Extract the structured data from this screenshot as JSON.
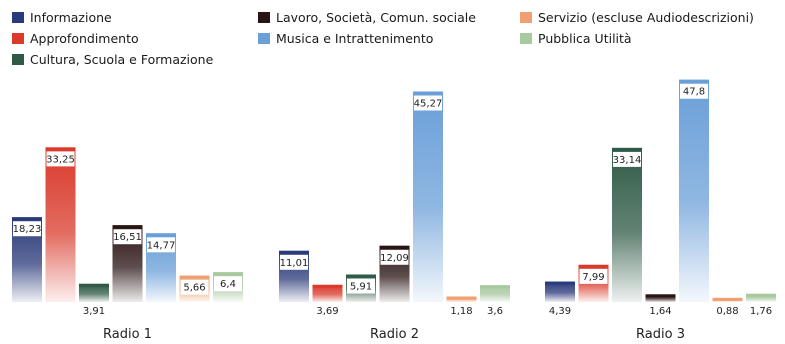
{
  "chart_data": {
    "type": "bar",
    "title": "",
    "xlabel": "",
    "ylabel": "",
    "ylim": [
      0,
      50
    ],
    "grid": false,
    "legend_position": "top",
    "categories": [
      "Radio 1",
      "Radio 2",
      "Radio 3"
    ],
    "series": [
      {
        "name": "Informazione",
        "color": "#2b3a7a",
        "values": [
          18.23,
          11.01,
          4.39
        ],
        "labels": [
          "18,23",
          "11,01",
          "4,39"
        ]
      },
      {
        "name": "Approfondimento",
        "color": "#d93a2b",
        "values": [
          33.25,
          3.69,
          7.99
        ],
        "labels": [
          "33,25",
          "3,69",
          "7,99"
        ]
      },
      {
        "name": "Cultura, Scuola e Formazione",
        "color": "#2f5a46",
        "values": [
          3.91,
          5.91,
          33.14
        ],
        "labels": [
          "3,91",
          "5,91",
          "33,14"
        ]
      },
      {
        "name": "Lavoro, Società, Comun. sociale",
        "color": "#2a1414",
        "values": [
          16.51,
          12.09,
          1.64
        ],
        "labels": [
          "16,51",
          "12,09",
          "1,64"
        ]
      },
      {
        "name": "Musica e Intrattenimento",
        "color": "#6a9fd8",
        "values": [
          14.77,
          45.27,
          47.8
        ],
        "labels": [
          "14,77",
          "45,27",
          "47,8"
        ]
      },
      {
        "name": "Servizio (escluse Audiodescrizioni)",
        "color": "#f0a070",
        "values": [
          5.66,
          1.18,
          0.88
        ],
        "labels": [
          "5,66",
          "1,18",
          "0,88"
        ]
      },
      {
        "name": "Pubblica Utilità",
        "color": "#a8c8a0",
        "values": [
          6.4,
          3.6,
          1.76
        ],
        "labels": [
          "6,4",
          "3,6",
          "1,76"
        ]
      }
    ]
  }
}
